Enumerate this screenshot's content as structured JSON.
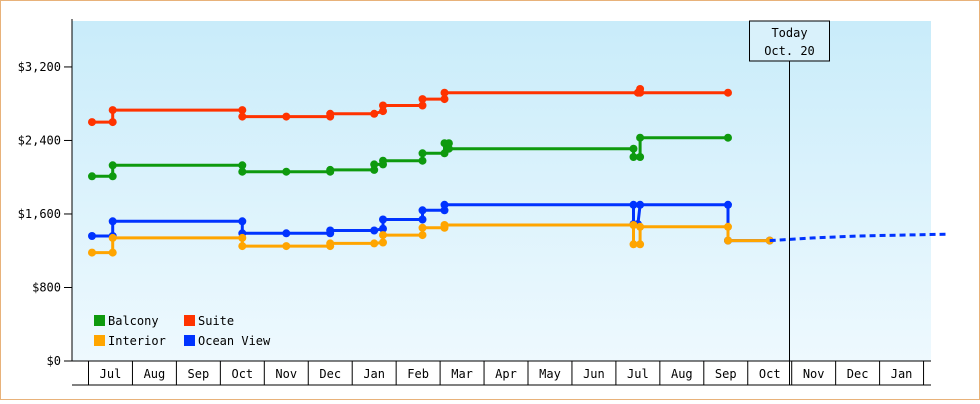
{
  "chart_data": {
    "type": "line",
    "title": "",
    "xlabel": "",
    "ylabel": "",
    "ylim": [
      0,
      3700
    ],
    "y_ticks": [
      0,
      800,
      1600,
      2400,
      3200
    ],
    "y_tick_labels": [
      "$0",
      "$800",
      "$1,600",
      "$2,400",
      "$3,200"
    ],
    "month_labels": [
      "Jul",
      "Aug",
      "Sep",
      "Oct",
      "Nov",
      "Dec",
      "Jan",
      "Feb",
      "Mar",
      "Apr",
      "May",
      "Jun",
      "Jul",
      "Aug",
      "Sep",
      "Oct",
      "Nov",
      "Dec",
      "Jan"
    ],
    "x_start_month_index": -0.42,
    "x_end_month_index": 19.0,
    "grid": false,
    "background_gradient": [
      "#c9ecfa",
      "#eef9fe"
    ],
    "today_marker": {
      "line1": "Today",
      "line2": "Oct. 20",
      "month_index": 15.45
    },
    "legend": {
      "placement": "bottom-left",
      "items": [
        {
          "name": "Balcony",
          "color": "#0e9a0e"
        },
        {
          "name": "Suite",
          "color": "#ff3300"
        },
        {
          "name": "Interior",
          "color": "#ffa500"
        },
        {
          "name": "Ocean View",
          "color": "#0033ff"
        }
      ]
    },
    "series": [
      {
        "name": "Suite",
        "color": "#ff3300",
        "values": [
          [
            -0.42,
            2600
          ],
          [
            0.05,
            2600
          ],
          [
            0.05,
            2730
          ],
          [
            3.0,
            2730
          ],
          [
            3.0,
            2660
          ],
          [
            4.0,
            2660
          ],
          [
            5.0,
            2660
          ],
          [
            5.0,
            2690
          ],
          [
            6.0,
            2690
          ],
          [
            6.2,
            2720
          ],
          [
            6.2,
            2780
          ],
          [
            7.1,
            2780
          ],
          [
            7.1,
            2850
          ],
          [
            7.6,
            2850
          ],
          [
            7.6,
            2920
          ],
          [
            12.0,
            2920
          ],
          [
            12.05,
            2960
          ],
          [
            12.05,
            2920
          ],
          [
            14.05,
            2920
          ]
        ]
      },
      {
        "name": "Balcony",
        "color": "#0e9a0e",
        "values": [
          [
            -0.42,
            2010
          ],
          [
            0.05,
            2010
          ],
          [
            0.05,
            2130
          ],
          [
            3.0,
            2130
          ],
          [
            3.0,
            2060
          ],
          [
            4.0,
            2060
          ],
          [
            5.0,
            2060
          ],
          [
            5.0,
            2080
          ],
          [
            6.0,
            2080
          ],
          [
            6.0,
            2140
          ],
          [
            6.2,
            2140
          ],
          [
            6.2,
            2180
          ],
          [
            7.1,
            2180
          ],
          [
            7.1,
            2260
          ],
          [
            7.6,
            2260
          ],
          [
            7.6,
            2370
          ],
          [
            7.7,
            2370
          ],
          [
            7.7,
            2310
          ],
          [
            11.9,
            2310
          ],
          [
            11.9,
            2220
          ],
          [
            12.05,
            2220
          ],
          [
            12.05,
            2430
          ],
          [
            14.05,
            2430
          ]
        ]
      },
      {
        "name": "Ocean View",
        "color": "#0033ff",
        "values": [
          [
            -0.42,
            1360
          ],
          [
            0.05,
            1360
          ],
          [
            0.05,
            1520
          ],
          [
            3.0,
            1520
          ],
          [
            3.0,
            1390
          ],
          [
            4.0,
            1390
          ],
          [
            5.0,
            1390
          ],
          [
            5.0,
            1420
          ],
          [
            6.0,
            1420
          ],
          [
            6.2,
            1440
          ],
          [
            6.2,
            1540
          ],
          [
            7.1,
            1540
          ],
          [
            7.1,
            1640
          ],
          [
            7.6,
            1640
          ],
          [
            7.6,
            1700
          ],
          [
            11.9,
            1700
          ],
          [
            11.9,
            1490
          ],
          [
            12.0,
            1490
          ],
          [
            12.05,
            1700
          ],
          [
            14.05,
            1700
          ],
          [
            14.05,
            1310
          ],
          [
            15.0,
            1310
          ]
        ]
      },
      {
        "name": "Interior",
        "color": "#ffa500",
        "values": [
          [
            -0.42,
            1180
          ],
          [
            0.05,
            1180
          ],
          [
            0.05,
            1340
          ],
          [
            3.0,
            1340
          ],
          [
            3.0,
            1250
          ],
          [
            4.0,
            1250
          ],
          [
            5.0,
            1250
          ],
          [
            5.0,
            1280
          ],
          [
            6.0,
            1280
          ],
          [
            6.2,
            1290
          ],
          [
            6.2,
            1370
          ],
          [
            7.1,
            1370
          ],
          [
            7.1,
            1450
          ],
          [
            7.6,
            1450
          ],
          [
            7.6,
            1480
          ],
          [
            11.9,
            1480
          ],
          [
            11.9,
            1270
          ],
          [
            12.05,
            1270
          ],
          [
            12.05,
            1460
          ],
          [
            14.05,
            1460
          ],
          [
            14.05,
            1310
          ],
          [
            15.0,
            1310
          ]
        ]
      }
    ],
    "forecast": {
      "name": "Forecast",
      "color": "#0033ff",
      "style": "dashed",
      "values": [
        [
          15.0,
          1310
        ],
        [
          16.0,
          1340
        ],
        [
          17.0,
          1360
        ],
        [
          18.0,
          1370
        ],
        [
          19.0,
          1380
        ]
      ]
    }
  }
}
